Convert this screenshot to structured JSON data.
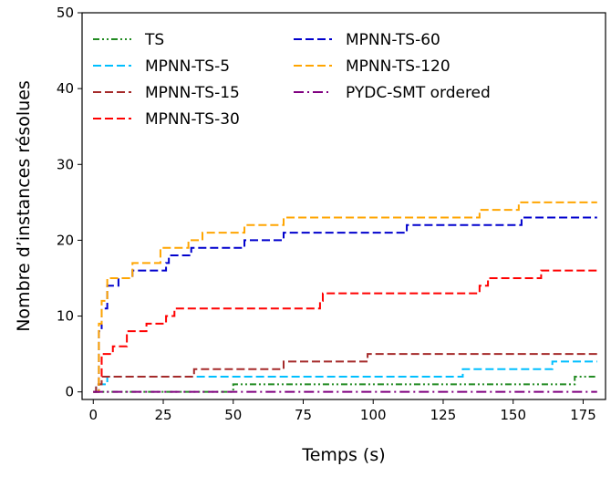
{
  "chart_data": {
    "type": "line",
    "xlabel": "Temps (s)",
    "ylabel": "Nombre d’instances résolues",
    "xlim": [
      -4,
      183
    ],
    "ylim": [
      -1,
      50
    ],
    "xticks": [
      0,
      25,
      50,
      75,
      100,
      125,
      150,
      175
    ],
    "yticks": [
      0,
      10,
      20,
      30,
      40,
      50
    ],
    "grid": false,
    "legend_position": "top-left",
    "legend_columns": 2,
    "series": [
      {
        "name": "TS",
        "color": "#228b22",
        "style": "dashdotdot",
        "steps": [
          [
            0,
            0
          ],
          [
            50,
            1
          ],
          [
            172,
            2
          ],
          [
            180,
            2
          ]
        ]
      },
      {
        "name": "MPNN-TS-5",
        "color": "#00bfff",
        "style": "dashed",
        "steps": [
          [
            0,
            0
          ],
          [
            1,
            1
          ],
          [
            5,
            2
          ],
          [
            132,
            3
          ],
          [
            164,
            4
          ],
          [
            180,
            4
          ]
        ]
      },
      {
        "name": "MPNN-TS-15",
        "color": "#a52a2a",
        "style": "dashed",
        "steps": [
          [
            0,
            0
          ],
          [
            1,
            1
          ],
          [
            3,
            2
          ],
          [
            36,
            3
          ],
          [
            68,
            4
          ],
          [
            98,
            5
          ],
          [
            180,
            5
          ]
        ]
      },
      {
        "name": "MPNN-TS-30",
        "color": "#ff0000",
        "style": "dashed",
        "steps": [
          [
            0,
            0
          ],
          [
            2,
            2
          ],
          [
            3,
            5
          ],
          [
            7,
            6
          ],
          [
            12,
            8
          ],
          [
            19,
            9
          ],
          [
            26,
            10
          ],
          [
            29,
            11
          ],
          [
            81,
            12
          ],
          [
            82,
            13
          ],
          [
            138,
            14
          ],
          [
            141,
            15
          ],
          [
            151,
            15
          ],
          [
            160,
            16
          ],
          [
            180,
            16
          ]
        ]
      },
      {
        "name": "MPNN-TS-60",
        "color": "#0000cd",
        "style": "dashed",
        "steps": [
          [
            0,
            0
          ],
          [
            2,
            8
          ],
          [
            3,
            11
          ],
          [
            5,
            14
          ],
          [
            9,
            15
          ],
          [
            14,
            16
          ],
          [
            26,
            17
          ],
          [
            27,
            18
          ],
          [
            35,
            19
          ],
          [
            54,
            20
          ],
          [
            68,
            21
          ],
          [
            112,
            22
          ],
          [
            153,
            23
          ],
          [
            180,
            23
          ]
        ]
      },
      {
        "name": "MPNN-TS-120",
        "color": "#ffa500",
        "style": "dashed",
        "steps": [
          [
            0,
            0
          ],
          [
            2,
            9
          ],
          [
            3,
            12
          ],
          [
            5,
            15
          ],
          [
            14,
            17
          ],
          [
            24,
            19
          ],
          [
            34,
            20
          ],
          [
            39,
            21
          ],
          [
            54,
            22
          ],
          [
            68,
            23
          ],
          [
            138,
            24
          ],
          [
            152,
            25
          ],
          [
            180,
            25
          ]
        ]
      },
      {
        "name": "PYDC-SMT ordered",
        "color": "#800080",
        "style": "dashdot",
        "steps": [
          [
            0,
            0
          ],
          [
            180,
            0
          ]
        ]
      }
    ]
  }
}
